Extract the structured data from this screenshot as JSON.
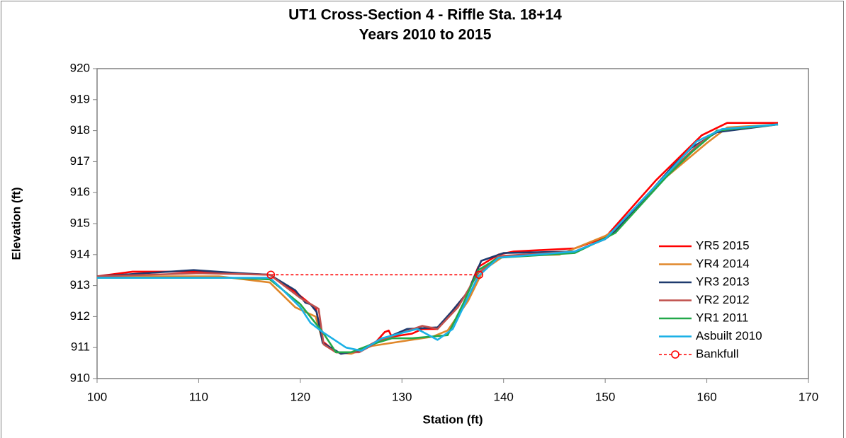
{
  "chart_data": {
    "type": "line",
    "title": "UT1 Cross-Section 4 - Riffle Sta. 18+14",
    "subtitle": "Years 2010 to 2015",
    "xlabel": "Station (ft)",
    "ylabel": "Elevation (ft)",
    "xlim": [
      100,
      170
    ],
    "xticks": [
      100,
      110,
      120,
      130,
      140,
      150,
      160,
      170
    ],
    "ylim": [
      910,
      920
    ],
    "yticks": [
      910,
      911,
      912,
      913,
      914,
      915,
      916,
      917,
      918,
      919,
      920
    ],
    "grid": false,
    "legend": "right",
    "series": [
      {
        "name": "YR5 2015",
        "color": "#ff0000",
        "x": [
          100,
          103.5,
          110,
          117,
          119.5,
          121,
          121.5,
          122.2,
          123.5,
          125.5,
          127.5,
          128.3,
          128.7,
          129,
          131,
          132,
          133.5,
          135,
          136.5,
          137.5,
          139.5,
          141,
          147,
          150,
          155,
          159.5,
          162,
          167
        ],
        "values": [
          913.3,
          913.45,
          913.45,
          913.35,
          912.8,
          912.4,
          912.3,
          911.2,
          910.85,
          910.85,
          911.2,
          911.5,
          911.55,
          911.35,
          911.45,
          911.6,
          911.6,
          912.2,
          912.8,
          913.6,
          914.0,
          914.1,
          914.2,
          914.55,
          916.4,
          917.85,
          918.25,
          918.25
        ]
      },
      {
        "name": "YR4 2014",
        "color": "#e0872a",
        "x": [
          100,
          112,
          117,
          119.5,
          121.5,
          122.3,
          123.5,
          125,
          127,
          130,
          133,
          134.5,
          136.5,
          138,
          140,
          145.5,
          150,
          151,
          156,
          160,
          162,
          167
        ],
        "values": [
          913.3,
          913.3,
          913.1,
          912.3,
          912.0,
          911.1,
          910.85,
          910.8,
          911.05,
          911.2,
          911.35,
          911.55,
          912.5,
          913.5,
          913.95,
          914.0,
          914.6,
          914.8,
          916.5,
          917.6,
          918.1,
          918.2
        ]
      },
      {
        "name": "YR3 2013",
        "color": "#1f3a6e",
        "x": [
          100,
          109.5,
          114,
          117,
          119.5,
          120.5,
          121,
          121.6,
          122.2,
          123.5,
          124,
          126,
          128,
          130.5,
          133.5,
          135,
          136.5,
          137.8,
          140,
          147,
          150,
          151,
          156.5,
          158.5,
          161,
          167
        ],
        "values": [
          913.3,
          913.5,
          913.4,
          913.35,
          912.85,
          912.45,
          912.4,
          912.15,
          911.15,
          910.9,
          910.8,
          910.9,
          911.25,
          911.6,
          911.65,
          912.2,
          912.8,
          913.8,
          914.05,
          914.1,
          914.5,
          914.75,
          916.8,
          917.45,
          917.95,
          918.2
        ]
      },
      {
        "name": "YR2 2012",
        "color": "#c0504d",
        "x": [
          100,
          110,
          117,
          120,
          121.8,
          122.3,
          123.5,
          125.8,
          128,
          132,
          133.5,
          135.5,
          137.5,
          139.5,
          147,
          150,
          155.5,
          159,
          161,
          167
        ],
        "values": [
          913.3,
          913.4,
          913.35,
          912.6,
          912.25,
          911.1,
          910.85,
          910.85,
          911.25,
          911.7,
          911.6,
          912.3,
          913.4,
          913.95,
          914.1,
          914.5,
          916.4,
          917.5,
          918.0,
          918.2
        ]
      },
      {
        "name": "YR1 2011",
        "color": "#22a84a",
        "x": [
          100,
          113,
          117,
          120,
          122.2,
          123.5,
          125,
          127,
          129,
          131,
          134.5,
          136,
          137.5,
          139.5,
          147,
          149.5,
          151,
          156,
          158.5,
          161,
          167
        ],
        "values": [
          913.25,
          913.25,
          913.2,
          912.4,
          911.5,
          910.85,
          910.85,
          911.1,
          911.3,
          911.3,
          911.4,
          912.4,
          913.5,
          913.9,
          914.05,
          914.45,
          914.7,
          916.5,
          917.3,
          918.0,
          918.2
        ]
      },
      {
        "name": "Asbuilt 2010",
        "color": "#1ab0e6",
        "x": [
          100,
          117,
          118,
          120,
          121,
          122.2,
          124.5,
          126,
          128,
          131.5,
          133.5,
          135,
          137.5,
          139.5,
          147,
          150,
          156.5,
          159,
          161.5,
          167
        ],
        "values": [
          913.25,
          913.25,
          912.95,
          912.3,
          911.8,
          911.5,
          911.0,
          910.9,
          911.3,
          911.6,
          911.25,
          911.6,
          913.3,
          913.9,
          914.1,
          914.5,
          916.75,
          917.65,
          918.05,
          918.2
        ]
      },
      {
        "name": "Bankfull",
        "color": "#ff0000",
        "style": "dashed",
        "marker": "circle",
        "x": [
          117.1,
          137.6
        ],
        "values": [
          913.35,
          913.35
        ]
      }
    ]
  }
}
